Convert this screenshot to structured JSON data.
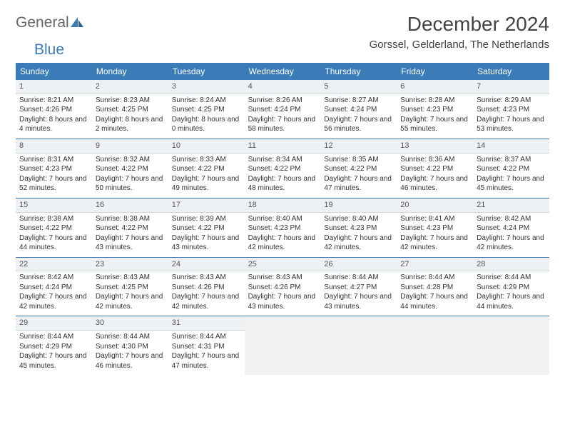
{
  "logo": {
    "text1": "General",
    "text2": "Blue"
  },
  "title": "December 2024",
  "location": "Gorssel, Gelderland, The Netherlands",
  "colors": {
    "header_bg": "#3a7bb8",
    "header_text": "#ffffff",
    "cell_border": "#3a7bb8",
    "daynum_bg": "#eef1f3",
    "text": "#333333",
    "empty_bg": "#f2f2f2"
  },
  "daynames": [
    "Sunday",
    "Monday",
    "Tuesday",
    "Wednesday",
    "Thursday",
    "Friday",
    "Saturday"
  ],
  "days": [
    {
      "n": 1,
      "sr": "8:21 AM",
      "ss": "4:26 PM",
      "dl": "8 hours and 4 minutes."
    },
    {
      "n": 2,
      "sr": "8:23 AM",
      "ss": "4:25 PM",
      "dl": "8 hours and 2 minutes."
    },
    {
      "n": 3,
      "sr": "8:24 AM",
      "ss": "4:25 PM",
      "dl": "8 hours and 0 minutes."
    },
    {
      "n": 4,
      "sr": "8:26 AM",
      "ss": "4:24 PM",
      "dl": "7 hours and 58 minutes."
    },
    {
      "n": 5,
      "sr": "8:27 AM",
      "ss": "4:24 PM",
      "dl": "7 hours and 56 minutes."
    },
    {
      "n": 6,
      "sr": "8:28 AM",
      "ss": "4:23 PM",
      "dl": "7 hours and 55 minutes."
    },
    {
      "n": 7,
      "sr": "8:29 AM",
      "ss": "4:23 PM",
      "dl": "7 hours and 53 minutes."
    },
    {
      "n": 8,
      "sr": "8:31 AM",
      "ss": "4:23 PM",
      "dl": "7 hours and 52 minutes."
    },
    {
      "n": 9,
      "sr": "8:32 AM",
      "ss": "4:22 PM",
      "dl": "7 hours and 50 minutes."
    },
    {
      "n": 10,
      "sr": "8:33 AM",
      "ss": "4:22 PM",
      "dl": "7 hours and 49 minutes."
    },
    {
      "n": 11,
      "sr": "8:34 AM",
      "ss": "4:22 PM",
      "dl": "7 hours and 48 minutes."
    },
    {
      "n": 12,
      "sr": "8:35 AM",
      "ss": "4:22 PM",
      "dl": "7 hours and 47 minutes."
    },
    {
      "n": 13,
      "sr": "8:36 AM",
      "ss": "4:22 PM",
      "dl": "7 hours and 46 minutes."
    },
    {
      "n": 14,
      "sr": "8:37 AM",
      "ss": "4:22 PM",
      "dl": "7 hours and 45 minutes."
    },
    {
      "n": 15,
      "sr": "8:38 AM",
      "ss": "4:22 PM",
      "dl": "7 hours and 44 minutes."
    },
    {
      "n": 16,
      "sr": "8:38 AM",
      "ss": "4:22 PM",
      "dl": "7 hours and 43 minutes."
    },
    {
      "n": 17,
      "sr": "8:39 AM",
      "ss": "4:22 PM",
      "dl": "7 hours and 43 minutes."
    },
    {
      "n": 18,
      "sr": "8:40 AM",
      "ss": "4:23 PM",
      "dl": "7 hours and 42 minutes."
    },
    {
      "n": 19,
      "sr": "8:40 AM",
      "ss": "4:23 PM",
      "dl": "7 hours and 42 minutes."
    },
    {
      "n": 20,
      "sr": "8:41 AM",
      "ss": "4:23 PM",
      "dl": "7 hours and 42 minutes."
    },
    {
      "n": 21,
      "sr": "8:42 AM",
      "ss": "4:24 PM",
      "dl": "7 hours and 42 minutes."
    },
    {
      "n": 22,
      "sr": "8:42 AM",
      "ss": "4:24 PM",
      "dl": "7 hours and 42 minutes."
    },
    {
      "n": 23,
      "sr": "8:43 AM",
      "ss": "4:25 PM",
      "dl": "7 hours and 42 minutes."
    },
    {
      "n": 24,
      "sr": "8:43 AM",
      "ss": "4:26 PM",
      "dl": "7 hours and 42 minutes."
    },
    {
      "n": 25,
      "sr": "8:43 AM",
      "ss": "4:26 PM",
      "dl": "7 hours and 43 minutes."
    },
    {
      "n": 26,
      "sr": "8:44 AM",
      "ss": "4:27 PM",
      "dl": "7 hours and 43 minutes."
    },
    {
      "n": 27,
      "sr": "8:44 AM",
      "ss": "4:28 PM",
      "dl": "7 hours and 44 minutes."
    },
    {
      "n": 28,
      "sr": "8:44 AM",
      "ss": "4:29 PM",
      "dl": "7 hours and 44 minutes."
    },
    {
      "n": 29,
      "sr": "8:44 AM",
      "ss": "4:29 PM",
      "dl": "7 hours and 45 minutes."
    },
    {
      "n": 30,
      "sr": "8:44 AM",
      "ss": "4:30 PM",
      "dl": "7 hours and 46 minutes."
    },
    {
      "n": 31,
      "sr": "8:44 AM",
      "ss": "4:31 PM",
      "dl": "7 hours and 47 minutes."
    }
  ],
  "labels": {
    "sunrise": "Sunrise:",
    "sunset": "Sunset:",
    "daylight": "Daylight:"
  },
  "trailing_empty": 4
}
